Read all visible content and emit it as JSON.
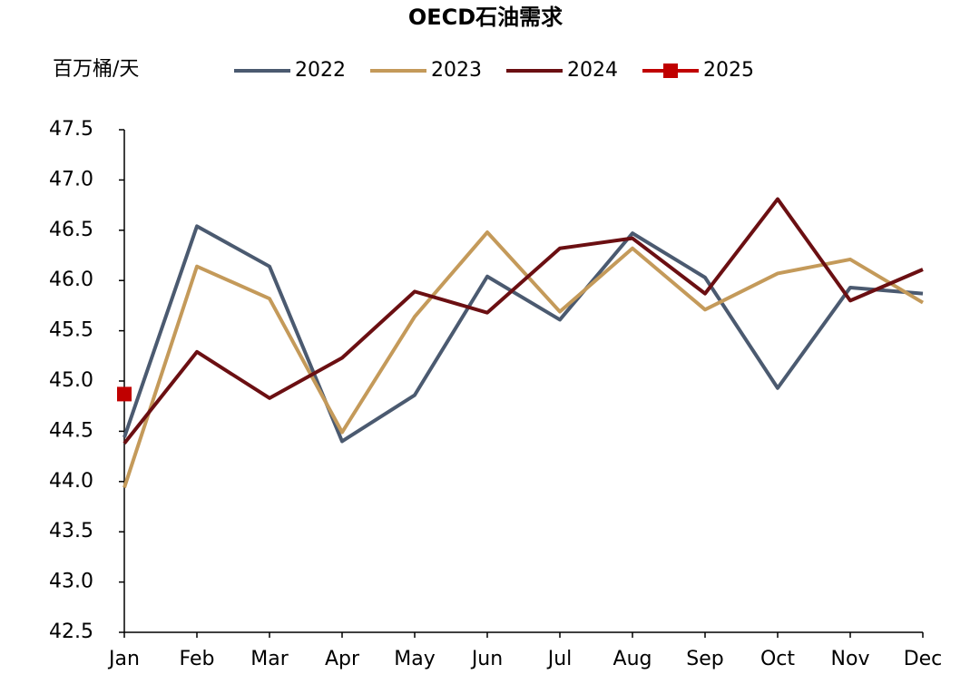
{
  "chart_data": {
    "type": "line",
    "title": "OECD石油需求",
    "y_label": "百万桶/天",
    "categories": [
      "Jan",
      "Feb",
      "Mar",
      "Apr",
      "May",
      "Jun",
      "Jul",
      "Aug",
      "Sep",
      "Oct",
      "Nov",
      "Dec"
    ],
    "series": [
      {
        "name": "2022",
        "color": "#4b5a70",
        "marker": "none",
        "values": [
          44.44,
          46.54,
          46.14,
          44.4,
          44.86,
          46.04,
          45.61,
          46.47,
          46.03,
          44.93,
          45.93,
          45.87
        ]
      },
      {
        "name": "2023",
        "color": "#c49a5a",
        "marker": "none",
        "values": [
          43.94,
          46.14,
          45.82,
          44.49,
          45.64,
          46.48,
          45.69,
          46.32,
          45.71,
          46.07,
          46.21,
          45.78
        ]
      },
      {
        "name": "2024",
        "color": "#6b0f12",
        "marker": "none",
        "values": [
          44.38,
          45.29,
          44.83,
          45.23,
          45.89,
          45.68,
          46.32,
          46.42,
          45.87,
          46.81,
          45.8,
          46.11
        ]
      },
      {
        "name": "2025",
        "color": "#c00000",
        "marker": "square",
        "values": [
          44.87,
          null,
          null,
          null,
          null,
          null,
          null,
          null,
          null,
          null,
          null,
          null
        ]
      }
    ],
    "ylim": [
      42.5,
      47.5
    ],
    "yticks": [
      42.5,
      {
        "value": 43,
        "label": "43.0"
      },
      43.5,
      {
        "value": 44,
        "label": "44.0"
      },
      44.5,
      {
        "value": 45,
        "label": "45.0"
      },
      45.5,
      {
        "value": 46,
        "label": "46.0"
      },
      46.5,
      {
        "value": 47,
        "label": "47.0"
      },
      47.5
    ],
    "grid": false,
    "legend": "top"
  }
}
